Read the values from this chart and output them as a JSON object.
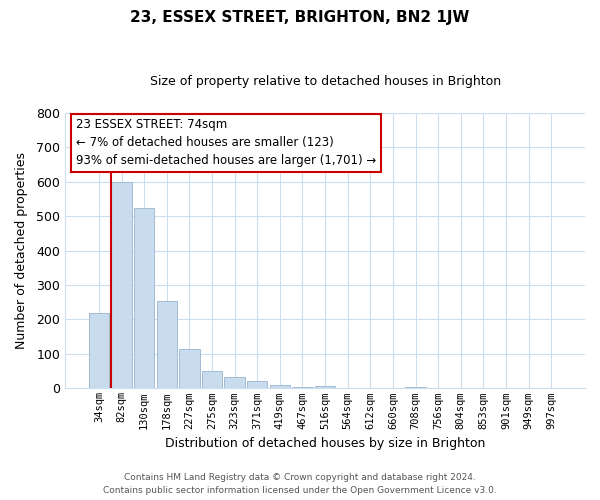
{
  "title": "23, ESSEX STREET, BRIGHTON, BN2 1JW",
  "subtitle": "Size of property relative to detached houses in Brighton",
  "xlabel": "Distribution of detached houses by size in Brighton",
  "ylabel": "Number of detached properties",
  "bin_labels": [
    "34sqm",
    "82sqm",
    "130sqm",
    "178sqm",
    "227sqm",
    "275sqm",
    "323sqm",
    "371sqm",
    "419sqm",
    "467sqm",
    "516sqm",
    "564sqm",
    "612sqm",
    "660sqm",
    "708sqm",
    "756sqm",
    "804sqm",
    "853sqm",
    "901sqm",
    "949sqm",
    "997sqm"
  ],
  "bar_values": [
    220,
    600,
    525,
    255,
    115,
    50,
    33,
    20,
    10,
    5,
    8,
    0,
    0,
    0,
    5,
    0,
    0,
    0,
    0,
    0,
    0
  ],
  "bar_color": "#c8dced",
  "bar_edge_color": "#a0bcd4",
  "highlight_line_color": "#cc0000",
  "ylim": [
    0,
    800
  ],
  "yticks": [
    0,
    100,
    200,
    300,
    400,
    500,
    600,
    700,
    800
  ],
  "annotation_title": "23 ESSEX STREET: 74sqm",
  "annotation_line1": "← 7% of detached houses are smaller (123)",
  "annotation_line2": "93% of semi-detached houses are larger (1,701) →",
  "annotation_box_color": "#ffffff",
  "annotation_box_edge_color": "#cc0000",
  "footer_line1": "Contains HM Land Registry data © Crown copyright and database right 2024.",
  "footer_line2": "Contains public sector information licensed under the Open Government Licence v3.0.",
  "background_color": "#ffffff",
  "grid_color": "#ccddee"
}
